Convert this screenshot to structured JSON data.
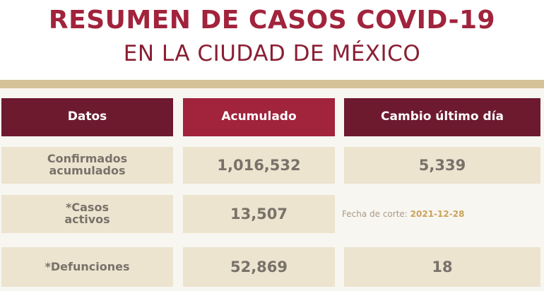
{
  "header": {
    "title": "RESUMEN DE CASOS COVID-19",
    "subtitle": "EN LA CIUDAD DE MÉXICO"
  },
  "table": {
    "columns": [
      "Datos",
      "Acumulado",
      "Cambio último día"
    ],
    "rows": [
      {
        "label": "Confirmados acumulados",
        "label_lines": [
          "Confirmados",
          "acumulados"
        ],
        "acumulado": "1,016,532",
        "cambio": "5,339"
      },
      {
        "label": "*Casos activos",
        "label_lines": [
          "*Casos",
          "activos"
        ],
        "acumulado": "13,507",
        "cambio": ""
      },
      {
        "label": "*Defunciones",
        "label_lines": [
          "*Defunciones"
        ],
        "acumulado": "52,869",
        "cambio": "18"
      }
    ]
  },
  "cutoff": {
    "label": "Fecha de corte:",
    "date": "2021-12-28"
  },
  "colors": {
    "title": "#a1233c",
    "header_dark": "#6d1a2f",
    "header_red": "#a1233c",
    "cell_bg": "#ece4cf",
    "band": "#d6c298",
    "text_gray": "#7a716a",
    "date_gold": "#c9a35a"
  }
}
